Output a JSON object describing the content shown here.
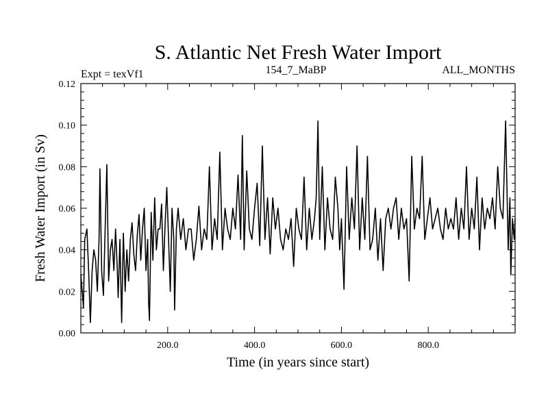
{
  "chart_data": {
    "type": "line",
    "title": "S. Atlantic Net Fresh Water Import",
    "experiment": "Expt = texVf1",
    "run_id": "154_7_MaBP",
    "period": "ALL_MONTHS",
    "xlabel": "Time (in years since start)",
    "ylabel": "Fresh Water Import (in Sv)",
    "xlim": [
      0,
      1000
    ],
    "ylim": [
      0.0,
      0.12
    ],
    "x_ticks": [
      200,
      400,
      600,
      800
    ],
    "x_tick_labels": [
      "200.0",
      "400.0",
      "600.0",
      "800.0"
    ],
    "y_ticks": [
      0.0,
      0.02,
      0.04,
      0.06,
      0.08,
      0.1,
      0.12
    ],
    "y_tick_labels": [
      "0.00",
      "0.02",
      "0.04",
      "0.06",
      "0.08",
      "0.10",
      "0.12"
    ],
    "grid": false,
    "series": [
      {
        "name": "Net fresh water import",
        "color": "#000000",
        "x": [
          0,
          4,
          6,
          9,
          14,
          18,
          22,
          26,
          30,
          34,
          38,
          42,
          44,
          48,
          52,
          56,
          60,
          64,
          68,
          72,
          76,
          80,
          84,
          86,
          90,
          94,
          98,
          102,
          106,
          110,
          114,
          118,
          122,
          126,
          130,
          134,
          138,
          142,
          146,
          150,
          154,
          156,
          158,
          162,
          166,
          170,
          174,
          178,
          182,
          186,
          190,
          194,
          198,
          202,
          206,
          210,
          214,
          216,
          220,
          224,
          230,
          236,
          242,
          248,
          254,
          260,
          266,
          272,
          278,
          284,
          290,
          296,
          302,
          308,
          314,
          320,
          326,
          332,
          338,
          344,
          350,
          356,
          362,
          368,
          372,
          376,
          382,
          388,
          394,
          400,
          406,
          412,
          418,
          424,
          430,
          436,
          442,
          448,
          454,
          460,
          466,
          472,
          478,
          484,
          490,
          496,
          502,
          508,
          514,
          520,
          526,
          532,
          538,
          542,
          546,
          550,
          556,
          562,
          568,
          574,
          580,
          586,
          592,
          596,
          600,
          606,
          612,
          618,
          624,
          630,
          636,
          642,
          648,
          654,
          660,
          666,
          672,
          678,
          684,
          690,
          696,
          702,
          708,
          714,
          720,
          726,
          732,
          738,
          744,
          750,
          756,
          762,
          768,
          774,
          780,
          786,
          792,
          798,
          804,
          810,
          816,
          822,
          828,
          834,
          840,
          846,
          852,
          858,
          864,
          870,
          876,
          882,
          888,
          894,
          900,
          906,
          912,
          918,
          924,
          930,
          936,
          942,
          948,
          954,
          960,
          966,
          972,
          978,
          984,
          988,
          990,
          994,
          998,
          1000
        ],
        "y": [
          0.028,
          0.018,
          0.012,
          0.045,
          0.05,
          0.03,
          0.005,
          0.03,
          0.04,
          0.035,
          0.02,
          0.045,
          0.079,
          0.03,
          0.018,
          0.05,
          0.081,
          0.025,
          0.04,
          0.045,
          0.03,
          0.05,
          0.03,
          0.017,
          0.045,
          0.005,
          0.048,
          0.02,
          0.04,
          0.025,
          0.045,
          0.053,
          0.038,
          0.03,
          0.047,
          0.057,
          0.035,
          0.05,
          0.06,
          0.03,
          0.045,
          0.015,
          0.006,
          0.058,
          0.035,
          0.065,
          0.04,
          0.05,
          0.05,
          0.062,
          0.03,
          0.052,
          0.07,
          0.045,
          0.02,
          0.06,
          0.045,
          0.011,
          0.05,
          0.06,
          0.045,
          0.055,
          0.04,
          0.05,
          0.05,
          0.035,
          0.045,
          0.061,
          0.04,
          0.05,
          0.045,
          0.08,
          0.04,
          0.055,
          0.045,
          0.087,
          0.04,
          0.06,
          0.05,
          0.045,
          0.06,
          0.05,
          0.076,
          0.045,
          0.095,
          0.04,
          0.078,
          0.05,
          0.045,
          0.06,
          0.072,
          0.042,
          0.09,
          0.045,
          0.065,
          0.038,
          0.065,
          0.05,
          0.06,
          0.045,
          0.04,
          0.05,
          0.045,
          0.055,
          0.032,
          0.06,
          0.05,
          0.045,
          0.075,
          0.04,
          0.06,
          0.045,
          0.055,
          0.065,
          0.102,
          0.045,
          0.08,
          0.04,
          0.065,
          0.05,
          0.045,
          0.075,
          0.06,
          0.04,
          0.055,
          0.021,
          0.08,
          0.045,
          0.065,
          0.05,
          0.09,
          0.04,
          0.065,
          0.045,
          0.085,
          0.04,
          0.045,
          0.06,
          0.035,
          0.055,
          0.03,
          0.055,
          0.06,
          0.05,
          0.06,
          0.065,
          0.045,
          0.06,
          0.05,
          0.055,
          0.025,
          0.085,
          0.05,
          0.06,
          0.055,
          0.085,
          0.045,
          0.055,
          0.065,
          0.05,
          0.055,
          0.06,
          0.05,
          0.045,
          0.06,
          0.05,
          0.055,
          0.05,
          0.065,
          0.045,
          0.06,
          0.05,
          0.08,
          0.045,
          0.06,
          0.05,
          0.075,
          0.04,
          0.065,
          0.05,
          0.06,
          0.055,
          0.065,
          0.05,
          0.08,
          0.06,
          0.055,
          0.102,
          0.04,
          0.065,
          0.028,
          0.055,
          0.045,
          0.055
        ]
      }
    ]
  }
}
